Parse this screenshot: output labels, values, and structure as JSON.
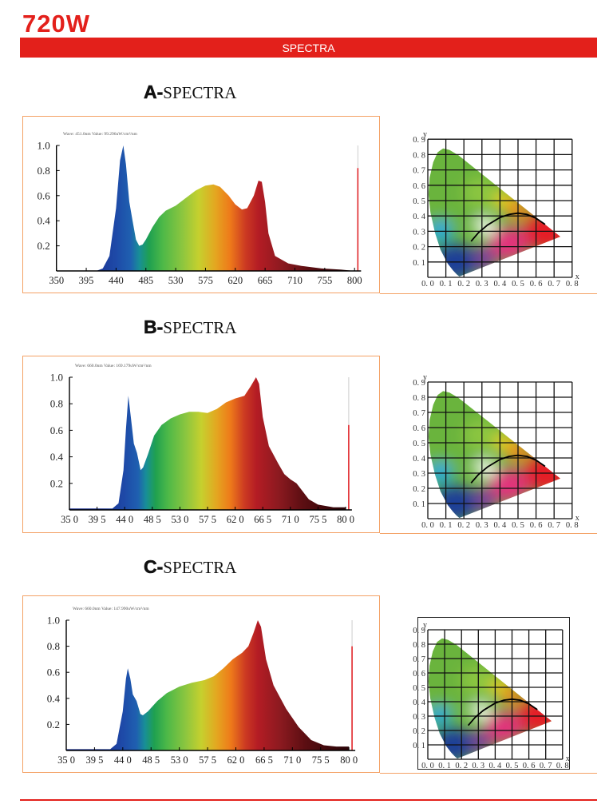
{
  "header": {
    "title": "720W",
    "banner": "SPECTRA"
  },
  "colors": {
    "brand_red": "#e3201b",
    "frame_orange": "#f4a266"
  },
  "sections": [
    {
      "letter": "A-",
      "word": "SPECTRA",
      "readout": "Wave: 451.0nm Value: 99.296uW/cm²/nm"
    },
    {
      "letter": "B-",
      "word": "SPECTRA",
      "readout": "Wave: 660.0nm Value: 169.179uW/cm²/nm"
    },
    {
      "letter": "C-",
      "word": "SPECTRA",
      "readout": "Wave: 660.0nm Value: 147.990uW/cm²/nm"
    }
  ],
  "cie": {
    "x_label": "x",
    "y_label": "y",
    "x_ticks": [
      "0. 0",
      "0. 1",
      "0. 2",
      "0. 3",
      "0. 4",
      "0. 5",
      "0. 6",
      "0. 7",
      "0. 8"
    ],
    "y_ticks": [
      "0. 1",
      "0. 2",
      "0. 3",
      "0. 4",
      "0. 5",
      "0. 6",
      "0. 7",
      "0. 8",
      "0. 9"
    ],
    "planckian_locus": [
      [
        0.24,
        0.235
      ],
      [
        0.28,
        0.29
      ],
      [
        0.33,
        0.34
      ],
      [
        0.4,
        0.39
      ],
      [
        0.45,
        0.41
      ],
      [
        0.5,
        0.418
      ],
      [
        0.55,
        0.41
      ],
      [
        0.6,
        0.385
      ],
      [
        0.65,
        0.345
      ]
    ]
  },
  "chart_data": [
    {
      "type": "area",
      "title": "A-SPECTRA",
      "xlabel": "",
      "ylabel": "",
      "xlim": [
        350,
        800
      ],
      "ylim": [
        0,
        1.0
      ],
      "x_tick_labels": [
        "350",
        "395",
        "440",
        "485",
        "530",
        "575",
        "620",
        "665",
        "710",
        "755",
        "800"
      ],
      "y_tick_labels": [
        "0.2",
        "0.4",
        "0.6",
        "0.8",
        "1.0"
      ],
      "marker_nm": 805,
      "marker_value": 0.82,
      "points": [
        [
          350,
          0
        ],
        [
          410,
          0
        ],
        [
          420,
          0.02
        ],
        [
          430,
          0.12
        ],
        [
          440,
          0.5
        ],
        [
          446,
          0.88
        ],
        [
          451,
          1.0
        ],
        [
          455,
          0.85
        ],
        [
          460,
          0.55
        ],
        [
          465,
          0.4
        ],
        [
          470,
          0.25
        ],
        [
          475,
          0.2
        ],
        [
          480,
          0.21
        ],
        [
          485,
          0.25
        ],
        [
          495,
          0.35
        ],
        [
          505,
          0.43
        ],
        [
          515,
          0.48
        ],
        [
          530,
          0.52
        ],
        [
          545,
          0.58
        ],
        [
          560,
          0.64
        ],
        [
          575,
          0.68
        ],
        [
          587,
          0.69
        ],
        [
          597,
          0.67
        ],
        [
          610,
          0.6
        ],
        [
          620,
          0.53
        ],
        [
          630,
          0.49
        ],
        [
          638,
          0.5
        ],
        [
          648,
          0.6
        ],
        [
          655,
          0.72
        ],
        [
          660,
          0.71
        ],
        [
          665,
          0.55
        ],
        [
          670,
          0.3
        ],
        [
          680,
          0.12
        ],
        [
          700,
          0.06
        ],
        [
          720,
          0.04
        ],
        [
          750,
          0.02
        ],
        [
          780,
          0.01
        ],
        [
          800,
          0
        ]
      ]
    },
    {
      "type": "area",
      "title": "B-SPECTRA",
      "xlabel": "",
      "ylabel": "",
      "xlim": [
        350,
        800
      ],
      "ylim": [
        0,
        1.0
      ],
      "x_tick_labels": [
        "35 0",
        "39 5",
        "44 0",
        "48 5",
        "53 0",
        "57 5",
        "62 0",
        "66 5",
        "71 0",
        "75 5",
        "80 0"
      ],
      "y_tick_labels": [
        "0.2",
        "0.4",
        "0.6",
        "0.8",
        "1.0"
      ],
      "marker_nm": 805,
      "marker_value": 0.64,
      "points": [
        [
          350,
          0.01
        ],
        [
          420,
          0.01
        ],
        [
          430,
          0.05
        ],
        [
          438,
          0.3
        ],
        [
          442,
          0.6
        ],
        [
          446,
          0.86
        ],
        [
          450,
          0.7
        ],
        [
          455,
          0.5
        ],
        [
          460,
          0.43
        ],
        [
          466,
          0.3
        ],
        [
          470,
          0.32
        ],
        [
          478,
          0.42
        ],
        [
          488,
          0.56
        ],
        [
          500,
          0.64
        ],
        [
          515,
          0.69
        ],
        [
          530,
          0.72
        ],
        [
          545,
          0.74
        ],
        [
          560,
          0.74
        ],
        [
          575,
          0.73
        ],
        [
          590,
          0.76
        ],
        [
          605,
          0.81
        ],
        [
          620,
          0.84
        ],
        [
          635,
          0.86
        ],
        [
          645,
          0.93
        ],
        [
          654,
          1.0
        ],
        [
          659,
          0.95
        ],
        [
          665,
          0.7
        ],
        [
          675,
          0.48
        ],
        [
          690,
          0.35
        ],
        [
          700,
          0.27
        ],
        [
          710,
          0.23
        ],
        [
          720,
          0.2
        ],
        [
          730,
          0.14
        ],
        [
          740,
          0.08
        ],
        [
          755,
          0.04
        ],
        [
          780,
          0.02
        ],
        [
          800,
          0.02
        ]
      ]
    },
    {
      "type": "area",
      "title": "C-SPECTRA",
      "xlabel": "",
      "ylabel": "",
      "xlim": [
        350,
        800
      ],
      "ylim": [
        0,
        1.0
      ],
      "x_tick_labels": [
        "35 0",
        "39 5",
        "44 0",
        "48 5",
        "53 0",
        "57 5",
        "62 0",
        "66 5",
        "71 0",
        "75 5",
        "80 0"
      ],
      "y_tick_labels": [
        "0.2",
        "0.4",
        "0.6",
        "0.8",
        "1.0"
      ],
      "marker_nm": 805,
      "marker_value": 0.8,
      "points": [
        [
          350,
          0.01
        ],
        [
          420,
          0.01
        ],
        [
          430,
          0.05
        ],
        [
          440,
          0.3
        ],
        [
          445,
          0.55
        ],
        [
          448,
          0.63
        ],
        [
          452,
          0.55
        ],
        [
          456,
          0.43
        ],
        [
          462,
          0.38
        ],
        [
          468,
          0.28
        ],
        [
          472,
          0.27
        ],
        [
          480,
          0.3
        ],
        [
          495,
          0.38
        ],
        [
          510,
          0.44
        ],
        [
          530,
          0.49
        ],
        [
          550,
          0.52
        ],
        [
          570,
          0.54
        ],
        [
          585,
          0.57
        ],
        [
          600,
          0.63
        ],
        [
          615,
          0.7
        ],
        [
          630,
          0.75
        ],
        [
          640,
          0.8
        ],
        [
          648,
          0.9
        ],
        [
          655,
          1.0
        ],
        [
          660,
          0.95
        ],
        [
          668,
          0.7
        ],
        [
          680,
          0.5
        ],
        [
          700,
          0.32
        ],
        [
          720,
          0.18
        ],
        [
          740,
          0.08
        ],
        [
          760,
          0.04
        ],
        [
          780,
          0.03
        ],
        [
          800,
          0.03
        ]
      ]
    }
  ]
}
